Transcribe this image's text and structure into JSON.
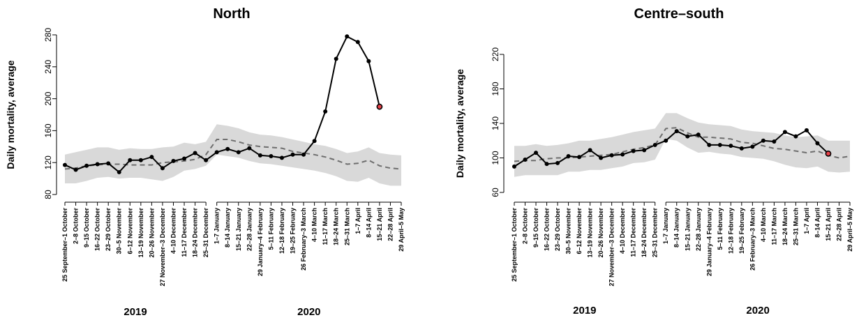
{
  "colors": {
    "band": "#d9d9d9",
    "expected": "#6e6e6e",
    "observed": "#000000",
    "last_point": "#e8434a",
    "axis": "#000000"
  },
  "chart_data": [
    {
      "type": "line",
      "title": "North",
      "ylabel": "Daily mortality, average",
      "yticks": [
        80,
        120,
        160,
        200,
        240,
        280
      ],
      "ylim": [
        80,
        280
      ],
      "grid": false,
      "years": [
        "2019",
        "2020"
      ],
      "categories": [
        "25 September–1 October",
        "2–8 October",
        "9–15 October",
        "16–22 October",
        "23–29 October",
        "30–5 November",
        "6–12 November",
        "13–19 November",
        "20–26 November",
        "27 November–3 December",
        "4–10 December",
        "11–17 December",
        "18–24 December",
        "25–31 December",
        "1–7 January",
        "8–14 January",
        "15–21 January",
        "22–28 January",
        "29 January–4 February",
        "5–11 February",
        "12–18 February",
        "19–25 February",
        "26 February–3 March",
        "4–10 March",
        "11–17 March",
        "18–24 March",
        "25–31 March",
        "1–7 April",
        "8–14 April",
        "15–21 April",
        "22–28 April",
        "29 April–5 May"
      ],
      "series": [
        {
          "values": [
            117,
            111,
            116,
            118,
            119,
            108,
            123,
            123,
            127,
            113,
            122,
            125,
            132,
            123,
            133,
            137,
            133,
            138,
            129,
            128,
            126,
            130,
            130,
            147,
            184,
            250,
            278,
            271,
            247,
            190,
            null,
            null
          ]
        },
        {
          "values": [
            112,
            113,
            116,
            117,
            118,
            118,
            117,
            117,
            117,
            120,
            121,
            122,
            124,
            130,
            149,
            149,
            146,
            142,
            140,
            139,
            138,
            134,
            132,
            130,
            127,
            123,
            118,
            119,
            123,
            116,
            113,
            112
          ]
        },
        {
          "values": [
            [
              94,
              130
            ],
            [
              94,
              133
            ],
            [
              97,
              136
            ],
            [
              101,
              139
            ],
            [
              102,
              139
            ],
            [
              100,
              136
            ],
            [
              101,
              138
            ],
            [
              101,
              137
            ],
            [
              99,
              137
            ],
            [
              97,
              139
            ],
            [
              102,
              140
            ],
            [
              110,
              145
            ],
            [
              112,
              143
            ],
            [
              116,
              146
            ],
            [
              130,
              168
            ],
            [
              128,
              166
            ],
            [
              126,
              163
            ],
            [
              122,
              158
            ],
            [
              119,
              155
            ],
            [
              118,
              154
            ],
            [
              116,
              152
            ],
            [
              114,
              149
            ],
            [
              112,
              146
            ],
            [
              110,
              143
            ],
            [
              107,
              141
            ],
            [
              103,
              137
            ],
            [
              97,
              132
            ],
            [
              96,
              134
            ],
            [
              101,
              139
            ],
            [
              94,
              132
            ],
            [
              91,
              130
            ],
            [
              91,
              129
            ]
          ]
        }
      ]
    },
    {
      "type": "line",
      "title": "Centre–south",
      "ylabel": "Daily mortality, average",
      "yticks": [
        60,
        100,
        140,
        180,
        220
      ],
      "ylim": [
        60,
        220
      ],
      "grid": false,
      "years": [
        "2019",
        "2020"
      ],
      "categories": [
        "25 September–1 October",
        "2–8 October",
        "9–15 October",
        "16–22 October",
        "23–29 October",
        "30–5 November",
        "6–12 November",
        "13–19 November",
        "20–26 November",
        "27 November–3 December",
        "4–10 December",
        "11–17 December",
        "18–24 December",
        "25–31 December",
        "1–7 January",
        "8–14 January",
        "15–21 January",
        "22–28 January",
        "29 January–4 February",
        "5–11 February",
        "12–18 February",
        "19–25 February",
        "26 February–3 March",
        "4–10 March",
        "11–17 March",
        "18–24 March",
        "25–31 March",
        "1–7 April",
        "8–14 April",
        "15–21 April",
        "22–28 April",
        "29 April–5 May"
      ],
      "series": [
        {
          "values": [
            90,
            98,
            106,
            93,
            94,
            102,
            101,
            109,
            100,
            103,
            104,
            108,
            109,
            115,
            120,
            131,
            125,
            127,
            115,
            115,
            114,
            111,
            113,
            120,
            119,
            130,
            125,
            132,
            117,
            105,
            null,
            null
          ]
        },
        {
          "values": [
            96,
            97,
            97,
            99,
            100,
            100,
            101,
            102,
            103,
            104,
            107,
            110,
            112,
            115,
            134,
            135,
            129,
            124,
            124,
            123,
            122,
            118,
            117,
            114,
            111,
            110,
            108,
            106,
            108,
            103,
            100,
            102
          ]
        },
        {
          "values": [
            [
              78,
              114
            ],
            [
              80,
              114
            ],
            [
              80,
              116
            ],
            [
              80,
              114
            ],
            [
              80,
              115
            ],
            [
              84,
              117
            ],
            [
              84,
              120
            ],
            [
              86,
              120
            ],
            [
              86,
              122
            ],
            [
              88,
              124
            ],
            [
              90,
              127
            ],
            [
              94,
              130
            ],
            [
              95,
              132
            ],
            [
              98,
              134
            ],
            [
              122,
              152
            ],
            [
              120,
              152
            ],
            [
              112,
              146
            ],
            [
              106,
              141
            ],
            [
              107,
              139
            ],
            [
              105,
              138
            ],
            [
              104,
              137
            ],
            [
              101,
              133
            ],
            [
              100,
              131
            ],
            [
              99,
              130
            ],
            [
              96,
              129
            ],
            [
              92,
              126
            ],
            [
              89,
              124
            ],
            [
              88,
              125
            ],
            [
              90,
              126
            ],
            [
              84,
              120
            ],
            [
              83,
              120
            ],
            [
              84,
              120
            ]
          ]
        }
      ]
    }
  ]
}
